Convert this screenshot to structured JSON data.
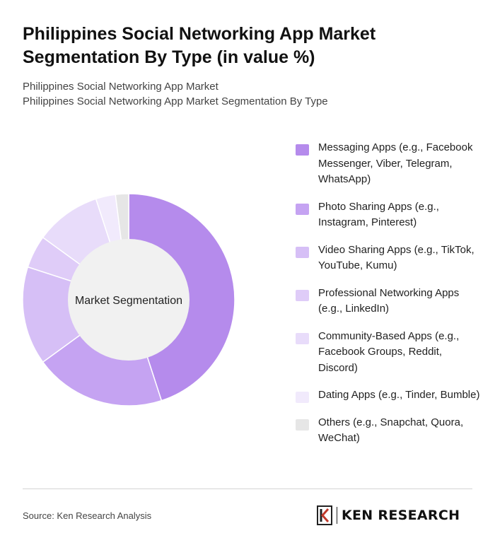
{
  "title": "Philippines Social Networking App Market Segmentation By Type (in value %)",
  "subtitles": [
    "Philippines Social Networking App Market",
    "Philippines Social Networking App Market Segmentation By Type"
  ],
  "footer": {
    "source": "Source: Ken Research Analysis",
    "brand": "KEN RESEARCH"
  },
  "chart_data": {
    "type": "pie",
    "variant": "donut",
    "center_label": "Market Segmentation",
    "legend_position": "right",
    "categories": [
      "Messaging Apps (e.g., Facebook Messenger, Viber, Telegram, WhatsApp)",
      "Photo Sharing Apps (e.g., Instagram, Pinterest)",
      "Video Sharing Apps (e.g., TikTok, YouTube, Kumu)",
      "Professional Networking Apps (e.g., LinkedIn)",
      "Community-Based Apps (e.g., Facebook Groups, Reddit, Discord)",
      "Dating Apps (e.g., Tinder, Bumble)",
      "Others (e.g., Snapchat, Quora, WeChat)"
    ],
    "values": [
      45,
      20,
      15,
      5,
      10,
      3,
      2
    ],
    "colors": [
      "#b58bec",
      "#c5a3f2",
      "#d6bff6",
      "#dfccf8",
      "#e8dcfa",
      "#f1eafc",
      "#e6e6e6"
    ]
  }
}
